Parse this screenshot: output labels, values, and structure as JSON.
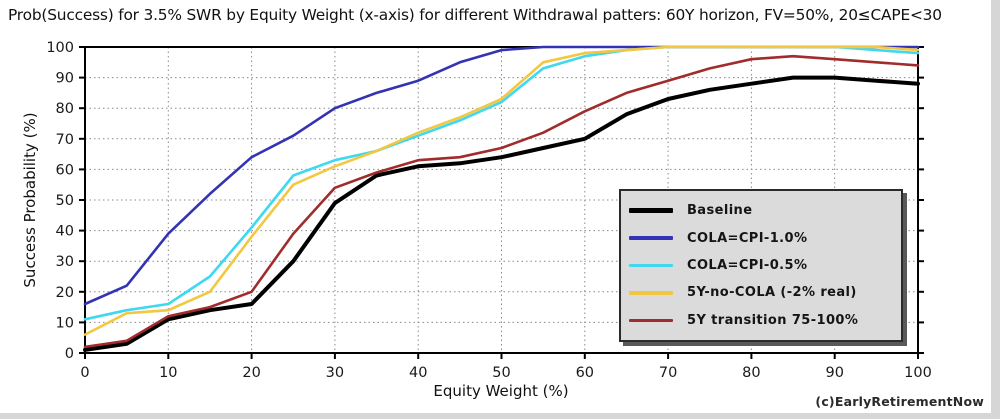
{
  "figure": {
    "title": "Prob(Success) for 3.5% SWR by Equity Weight (x-axis) for different Withdrawal patters: 60Y horizon, FV=50%, 20≤CAPE<30",
    "watermark": "(c)EarlyRetirementNow"
  },
  "chart_data": {
    "type": "line",
    "title": "Prob(Success) for 3.5% SWR by Equity Weight (x-axis) for different Withdrawal patters: 60Y horizon, FV=50%, 20≤CAPE<30",
    "xlabel": "Equity Weight (%)",
    "ylabel": "Success Probability (%)",
    "xlim": [
      0,
      100
    ],
    "ylim": [
      0,
      100
    ],
    "x_ticks": [
      0,
      10,
      20,
      30,
      40,
      50,
      60,
      70,
      80,
      90,
      100
    ],
    "y_ticks": [
      0,
      10,
      20,
      30,
      40,
      50,
      60,
      70,
      80,
      90,
      100
    ],
    "grid": true,
    "grid_style": "dotted",
    "legend_position": "center-right",
    "x": [
      0,
      5,
      10,
      15,
      20,
      25,
      30,
      35,
      40,
      45,
      50,
      55,
      60,
      65,
      70,
      75,
      80,
      85,
      90,
      95,
      100
    ],
    "series": [
      {
        "name": "Baseline",
        "color": "#000000",
        "line_width": 4,
        "values": [
          1,
          3,
          11,
          14,
          16,
          30,
          49,
          58,
          61,
          62,
          64,
          67,
          70,
          78,
          83,
          86,
          88,
          90,
          90,
          89,
          88
        ]
      },
      {
        "name": "COLA=CPI-1.0%",
        "color": "#3333B4",
        "line_width": 2.6,
        "values": [
          16,
          22,
          39,
          52,
          64,
          71,
          80,
          85,
          89,
          95,
          99,
          100,
          100,
          100,
          100,
          100,
          100,
          100,
          100,
          100,
          100
        ]
      },
      {
        "name": "COLA=CPI-0.5%",
        "color": "#3FD8F0",
        "line_width": 2.6,
        "values": [
          11,
          14,
          16,
          25,
          41,
          58,
          63,
          66,
          71,
          76,
          82,
          93,
          97,
          99,
          100,
          100,
          100,
          100,
          100,
          99,
          98
        ]
      },
      {
        "name": "5Y-no-COLA (-2% real)",
        "color": "#F3C73F",
        "line_width": 2.6,
        "values": [
          6,
          13,
          14,
          20,
          38,
          55,
          61,
          66,
          72,
          77,
          83,
          95,
          98,
          99,
          100,
          100,
          100,
          100,
          100,
          100,
          99
        ]
      },
      {
        "name": "5Y transition 75-100%",
        "color": "#A02C2C",
        "line_width": 2.6,
        "values": [
          2,
          4,
          12,
          15,
          20,
          39,
          54,
          59,
          63,
          64,
          67,
          72,
          79,
          85,
          89,
          93,
          96,
          97,
          96,
          95,
          94
        ]
      }
    ],
    "plot_colors": {
      "frame": "#000000",
      "grid": "#8a8a8a",
      "tick_text": "#1a1a1a",
      "legend_bg": "#dbdbdb",
      "legend_border": "#2b2b2b"
    }
  }
}
